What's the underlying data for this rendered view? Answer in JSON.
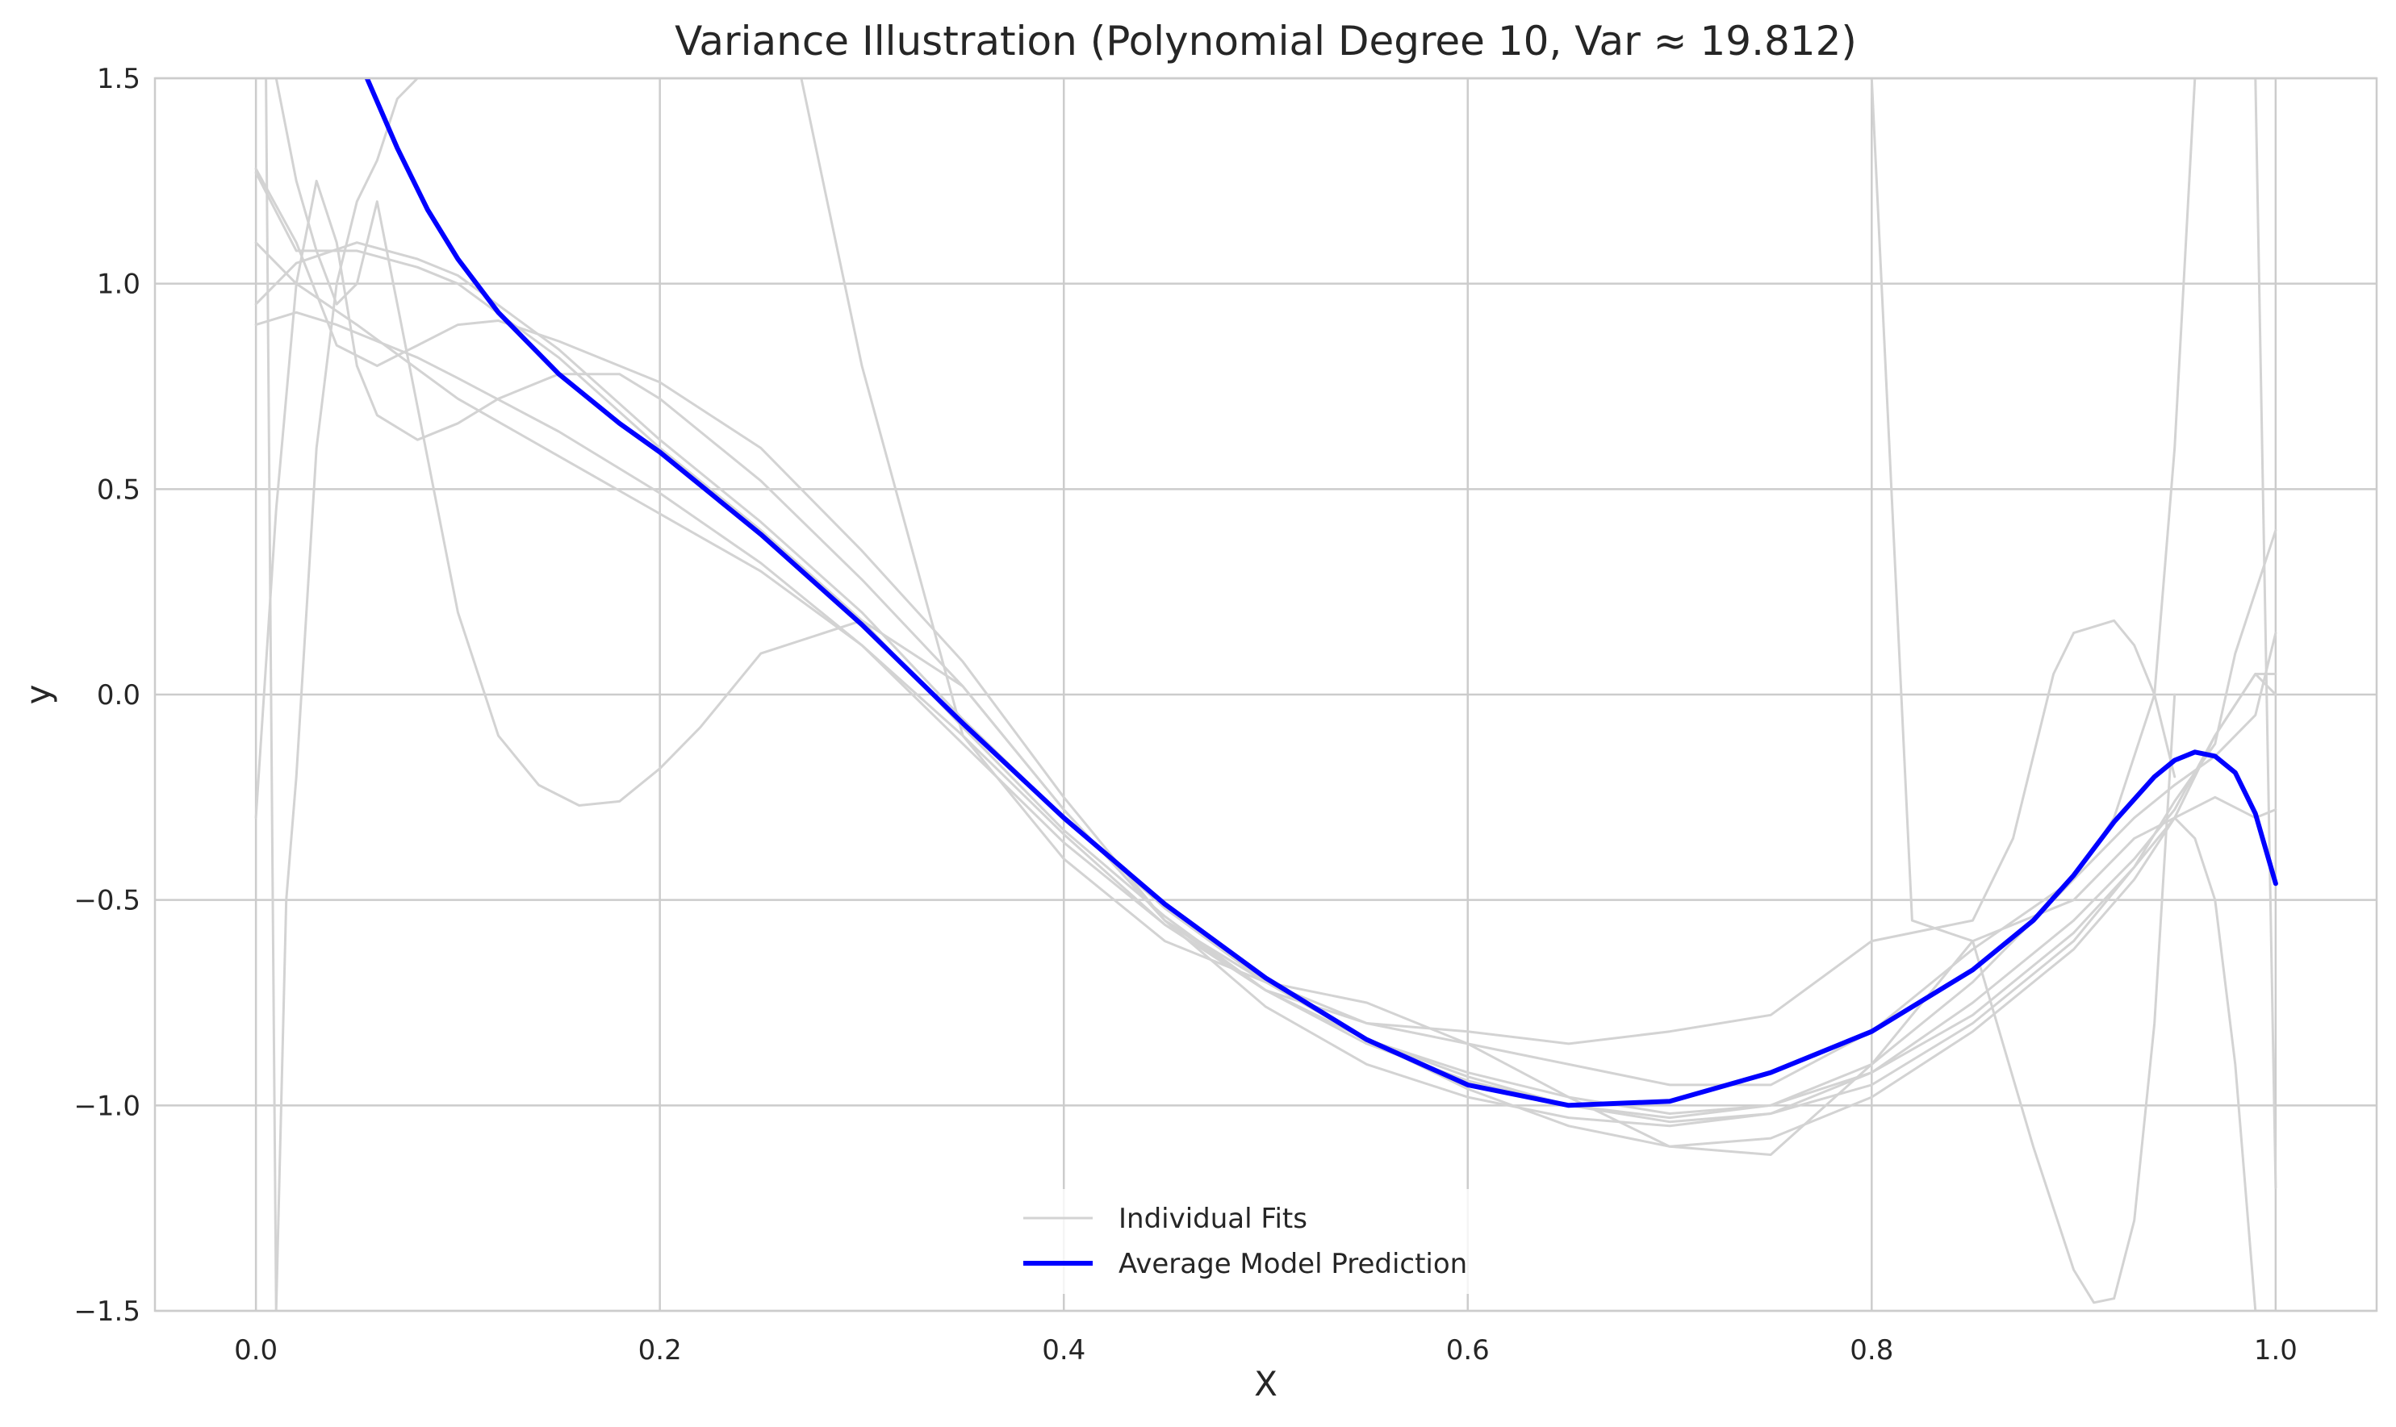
{
  "chart_data": {
    "type": "line",
    "title": "Variance Illustration (Polynomial Degree 10, Var ≈ 19.812)",
    "xlabel": "X",
    "ylabel": "y",
    "xlim": [
      -0.05,
      1.05
    ],
    "ylim": [
      -1.5,
      1.5
    ],
    "xticks": [
      0.0,
      0.2,
      0.4,
      0.6,
      0.8,
      1.0
    ],
    "xtick_labels": [
      "0.0",
      "0.2",
      "0.4",
      "0.6",
      "0.8",
      "1.0"
    ],
    "yticks": [
      -1.5,
      -1.0,
      -0.5,
      0.0,
      0.5,
      1.0,
      1.5
    ],
    "ytick_labels": [
      "−1.5",
      "−1.0",
      "−0.5",
      "0.0",
      "0.5",
      "1.0",
      "1.5"
    ],
    "grid": true,
    "legend_position": "bottom-center",
    "legend": [
      {
        "label": "Individual Fits",
        "color": "#d3d3d3"
      },
      {
        "label": "Average Model Prediction",
        "color": "#0000ff"
      }
    ],
    "colors": {
      "individual": "#d3d3d3",
      "average": "#0000ff",
      "grid": "#cccccc",
      "text": "#262626"
    },
    "series": [
      {
        "name": "Individual Fits",
        "x": [
          0.0,
          0.02,
          0.05,
          0.08,
          0.1,
          0.15,
          0.2,
          0.25,
          0.3,
          0.35,
          0.4,
          0.45,
          0.5,
          0.55,
          0.6,
          0.65,
          0.7,
          0.75,
          0.8,
          0.85,
          0.9,
          0.93,
          0.95,
          0.97,
          0.99,
          1.0
        ],
        "y": [
          1.27,
          1.08,
          1.08,
          1.04,
          1.0,
          0.82,
          0.6,
          0.4,
          0.18,
          -0.08,
          -0.33,
          -0.54,
          -0.72,
          -0.85,
          -0.94,
          -1.0,
          -1.03,
          -1.0,
          -0.9,
          -0.7,
          -0.45,
          -0.3,
          -0.22,
          -0.15,
          -0.05,
          0.15
        ]
      },
      {
        "name": "Individual Fits",
        "x": [
          0.0,
          0.02,
          0.05,
          0.08,
          0.1,
          0.15,
          0.2,
          0.25,
          0.3,
          0.35,
          0.4,
          0.45,
          0.5,
          0.55,
          0.6,
          0.65,
          0.7,
          0.75,
          0.8,
          0.85,
          0.9,
          0.93,
          0.95,
          0.97,
          0.99,
          1.0
        ],
        "y": [
          0.95,
          1.05,
          1.1,
          1.06,
          1.02,
          0.84,
          0.62,
          0.42,
          0.2,
          -0.06,
          -0.3,
          -0.52,
          -0.7,
          -0.84,
          -0.96,
          -1.05,
          -1.1,
          -1.08,
          -0.98,
          -0.82,
          -0.62,
          -0.45,
          -0.3,
          -0.1,
          0.05,
          0.05
        ]
      },
      {
        "name": "Individual Fits",
        "x": [
          0.0,
          0.02,
          0.04,
          0.06,
          0.08,
          0.1,
          0.15,
          0.2,
          0.25,
          0.3,
          0.35,
          0.4,
          0.45,
          0.5,
          0.55,
          0.6,
          0.65,
          0.7,
          0.75,
          0.8,
          0.85,
          0.9,
          0.93,
          0.95,
          0.97,
          0.99,
          1.0
        ],
        "y": [
          0.9,
          0.93,
          0.9,
          0.86,
          0.82,
          0.77,
          0.64,
          0.49,
          0.32,
          0.12,
          -0.12,
          -0.36,
          -0.56,
          -0.72,
          -0.84,
          -0.92,
          -0.98,
          -1.02,
          -1.0,
          -0.92,
          -0.78,
          -0.58,
          -0.42,
          -0.3,
          -0.25,
          -0.3,
          -0.28
        ]
      },
      {
        "name": "Individual Fits",
        "x": [
          0.0,
          0.02,
          0.04,
          0.06,
          0.08,
          0.1,
          0.12,
          0.15,
          0.18,
          0.2,
          0.25,
          0.3,
          0.35,
          0.4,
          0.45,
          0.5,
          0.55,
          0.6,
          0.65,
          0.7,
          0.75,
          0.8,
          0.85,
          0.9,
          0.93,
          0.95,
          0.97,
          0.99,
          1.0
        ],
        "y": [
          1.28,
          1.1,
          0.85,
          0.8,
          0.85,
          0.9,
          0.91,
          0.86,
          0.8,
          0.76,
          0.6,
          0.35,
          0.08,
          -0.25,
          -0.55,
          -0.76,
          -0.9,
          -0.98,
          -1.03,
          -1.05,
          -1.02,
          -0.92,
          -0.75,
          -0.55,
          -0.4,
          -0.28,
          -0.1,
          0.05,
          0.0
        ]
      },
      {
        "name": "Individual Fits",
        "x": [
          0.0,
          0.01,
          0.02,
          0.03,
          0.04,
          0.05,
          0.06,
          0.08,
          0.1,
          0.12,
          0.15,
          0.18,
          0.2,
          0.25,
          0.3,
          0.35,
          0.4,
          0.45,
          0.5,
          0.55,
          0.6,
          0.65,
          0.7,
          0.75,
          0.8,
          0.85,
          0.9,
          0.92,
          0.94,
          0.95,
          0.96,
          0.97,
          0.98,
          0.99,
          1.0
        ],
        "y": [
          -0.3,
          0.45,
          1.0,
          1.25,
          1.1,
          0.8,
          0.68,
          0.62,
          0.66,
          0.72,
          0.78,
          0.78,
          0.72,
          0.52,
          0.28,
          0.02,
          -0.28,
          -0.55,
          -0.72,
          -0.8,
          -0.85,
          -0.9,
          -0.95,
          -0.95,
          -0.82,
          -0.62,
          -0.45,
          -0.3,
          0.0,
          0.6,
          1.5,
          1.5,
          1.5,
          1.5,
          1.5
        ]
      },
      {
        "name": "Individual Fits",
        "x": [
          0.0,
          0.005,
          0.01,
          0.02,
          0.03,
          0.04,
          0.05,
          0.06,
          0.08,
          0.1,
          0.12,
          0.14,
          0.16,
          0.18,
          0.2,
          0.22,
          0.25,
          0.3,
          0.35,
          0.4,
          0.45,
          0.5,
          0.55,
          0.6,
          0.65,
          0.7,
          0.75,
          0.8,
          0.85,
          0.87,
          0.89,
          0.9,
          0.92,
          0.93,
          0.94,
          0.95
        ],
        "y": [
          1.5,
          1.5,
          1.5,
          1.25,
          1.08,
          0.95,
          1.0,
          1.2,
          0.7,
          0.2,
          -0.1,
          -0.22,
          -0.27,
          -0.26,
          -0.18,
          -0.08,
          0.1,
          0.18,
          0.02,
          -0.28,
          -0.55,
          -0.7,
          -0.8,
          -0.82,
          -0.85,
          -0.82,
          -0.78,
          -0.6,
          -0.55,
          -0.35,
          0.05,
          0.15,
          0.18,
          0.12,
          0.0,
          -0.2
        ]
      },
      {
        "name": "Individual Fits",
        "x": [
          0.0,
          0.005,
          0.01,
          0.015,
          0.02,
          0.03,
          0.04,
          0.05,
          0.06,
          0.07,
          0.08,
          0.1,
          0.15,
          0.2,
          0.25,
          0.3,
          0.35,
          0.4,
          0.45,
          0.5,
          0.55,
          0.6,
          0.65,
          0.7,
          0.75,
          0.8,
          0.82,
          0.85,
          0.88,
          0.9,
          0.91,
          0.92,
          0.93,
          0.94,
          0.95
        ],
        "y": [
          1.5,
          1.5,
          -1.5,
          -0.5,
          -0.2,
          0.6,
          1.0,
          1.2,
          1.3,
          1.45,
          1.5,
          1.5,
          1.5,
          1.5,
          1.5,
          1.5,
          1.5,
          1.5,
          1.5,
          1.5,
          1.5,
          1.5,
          1.5,
          1.5,
          1.5,
          1.5,
          -0.55,
          -0.6,
          -1.1,
          -1.4,
          -1.48,
          -1.47,
          -1.28,
          -0.8,
          0.0
        ]
      },
      {
        "name": "Individual Fits",
        "x": [
          0.0,
          0.02,
          0.05,
          0.1,
          0.15,
          0.2,
          0.25,
          0.27,
          0.3,
          0.35,
          0.4,
          0.45,
          0.5,
          0.55,
          0.6,
          0.65,
          0.7,
          0.75,
          0.8,
          0.85,
          0.9,
          0.93,
          0.95,
          0.96,
          0.97,
          0.98,
          0.99,
          1.0
        ],
        "y": [
          1.5,
          1.5,
          1.5,
          1.5,
          1.5,
          1.5,
          1.5,
          1.5,
          0.8,
          -0.1,
          -0.4,
          -0.6,
          -0.7,
          -0.75,
          -0.85,
          -0.98,
          -1.1,
          -1.12,
          -0.9,
          -0.6,
          -0.5,
          -0.35,
          -0.3,
          -0.35,
          -0.5,
          -0.9,
          -1.5,
          -1.5
        ]
      },
      {
        "name": "Individual Fits",
        "x": [
          0.0,
          0.02,
          0.05,
          0.1,
          0.15,
          0.2,
          0.25,
          0.3,
          0.35,
          0.4,
          0.45,
          0.5,
          0.55,
          0.6,
          0.65,
          0.7,
          0.75,
          0.8,
          0.85,
          0.9,
          0.93,
          0.95,
          0.97,
          0.98,
          0.99,
          1.0
        ],
        "y": [
          1.1,
          1.0,
          0.9,
          0.72,
          0.58,
          0.44,
          0.3,
          0.12,
          -0.1,
          -0.34,
          -0.56,
          -0.72,
          -0.84,
          -0.93,
          -1.0,
          -1.04,
          -1.02,
          -0.95,
          -0.8,
          -0.6,
          -0.42,
          -0.26,
          -0.12,
          0.1,
          0.25,
          0.4
        ]
      },
      {
        "name": "Individual Fits",
        "x": [
          0.0,
          0.02,
          0.05,
          0.1,
          0.15,
          0.2,
          0.25,
          0.3,
          0.35,
          0.4,
          0.45,
          0.5,
          0.55,
          0.6,
          0.65,
          0.7,
          0.75,
          0.8,
          0.85,
          0.9,
          0.92,
          0.94,
          0.95,
          0.96,
          0.97,
          0.98,
          0.99,
          1.0
        ],
        "y": [
          1.5,
          1.5,
          1.5,
          1.5,
          1.5,
          1.5,
          1.5,
          1.5,
          1.5,
          1.5,
          1.5,
          1.5,
          1.5,
          1.5,
          1.5,
          1.5,
          1.5,
          1.5,
          1.5,
          1.5,
          1.5,
          1.5,
          1.5,
          1.5,
          1.5,
          1.5,
          1.5,
          -1.2
        ]
      },
      {
        "name": "Average Model Prediction",
        "x": [
          0.055,
          0.07,
          0.085,
          0.1,
          0.12,
          0.15,
          0.18,
          0.2,
          0.25,
          0.3,
          0.35,
          0.4,
          0.45,
          0.5,
          0.55,
          0.6,
          0.65,
          0.7,
          0.75,
          0.8,
          0.85,
          0.88,
          0.9,
          0.92,
          0.94,
          0.95,
          0.96,
          0.97,
          0.98,
          0.99,
          1.0
        ],
        "y": [
          1.5,
          1.33,
          1.18,
          1.06,
          0.93,
          0.78,
          0.66,
          0.59,
          0.39,
          0.17,
          -0.07,
          -0.3,
          -0.51,
          -0.69,
          -0.84,
          -0.95,
          -1.0,
          -0.99,
          -0.92,
          -0.82,
          -0.67,
          -0.55,
          -0.44,
          -0.31,
          -0.2,
          -0.16,
          -0.14,
          -0.15,
          -0.19,
          -0.29,
          -0.46
        ]
      }
    ]
  }
}
